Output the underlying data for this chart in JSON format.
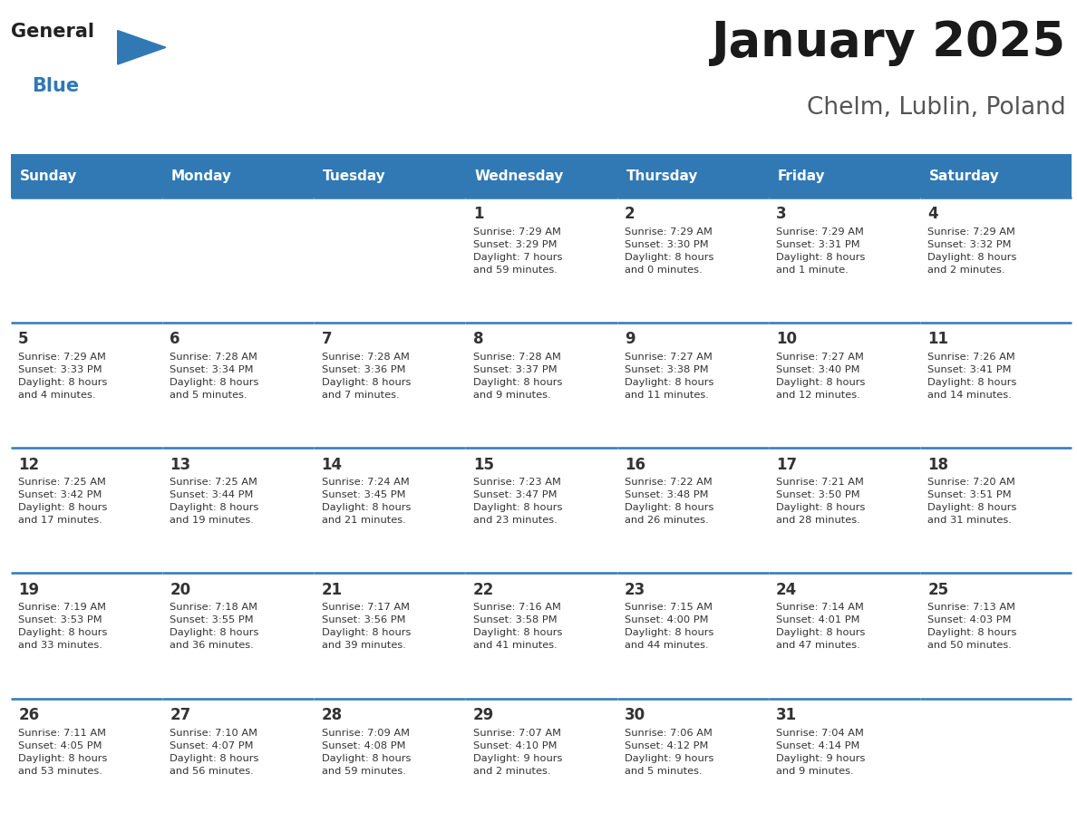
{
  "title": "January 2025",
  "subtitle": "Chelm, Lublin, Poland",
  "header_bg": "#3079b5",
  "header_text_color": "#ffffff",
  "cell_bg_light": "#f0f4f8",
  "cell_bg_white": "#ffffff",
  "border_color": "#3079b5",
  "text_color": "#333333",
  "day_names": [
    "Sunday",
    "Monday",
    "Tuesday",
    "Wednesday",
    "Thursday",
    "Friday",
    "Saturday"
  ],
  "weeks": [
    [
      {
        "day": "",
        "info": ""
      },
      {
        "day": "",
        "info": ""
      },
      {
        "day": "",
        "info": ""
      },
      {
        "day": "1",
        "info": "Sunrise: 7:29 AM\nSunset: 3:29 PM\nDaylight: 7 hours\nand 59 minutes."
      },
      {
        "day": "2",
        "info": "Sunrise: 7:29 AM\nSunset: 3:30 PM\nDaylight: 8 hours\nand 0 minutes."
      },
      {
        "day": "3",
        "info": "Sunrise: 7:29 AM\nSunset: 3:31 PM\nDaylight: 8 hours\nand 1 minute."
      },
      {
        "day": "4",
        "info": "Sunrise: 7:29 AM\nSunset: 3:32 PM\nDaylight: 8 hours\nand 2 minutes."
      }
    ],
    [
      {
        "day": "5",
        "info": "Sunrise: 7:29 AM\nSunset: 3:33 PM\nDaylight: 8 hours\nand 4 minutes."
      },
      {
        "day": "6",
        "info": "Sunrise: 7:28 AM\nSunset: 3:34 PM\nDaylight: 8 hours\nand 5 minutes."
      },
      {
        "day": "7",
        "info": "Sunrise: 7:28 AM\nSunset: 3:36 PM\nDaylight: 8 hours\nand 7 minutes."
      },
      {
        "day": "8",
        "info": "Sunrise: 7:28 AM\nSunset: 3:37 PM\nDaylight: 8 hours\nand 9 minutes."
      },
      {
        "day": "9",
        "info": "Sunrise: 7:27 AM\nSunset: 3:38 PM\nDaylight: 8 hours\nand 11 minutes."
      },
      {
        "day": "10",
        "info": "Sunrise: 7:27 AM\nSunset: 3:40 PM\nDaylight: 8 hours\nand 12 minutes."
      },
      {
        "day": "11",
        "info": "Sunrise: 7:26 AM\nSunset: 3:41 PM\nDaylight: 8 hours\nand 14 minutes."
      }
    ],
    [
      {
        "day": "12",
        "info": "Sunrise: 7:25 AM\nSunset: 3:42 PM\nDaylight: 8 hours\nand 17 minutes."
      },
      {
        "day": "13",
        "info": "Sunrise: 7:25 AM\nSunset: 3:44 PM\nDaylight: 8 hours\nand 19 minutes."
      },
      {
        "day": "14",
        "info": "Sunrise: 7:24 AM\nSunset: 3:45 PM\nDaylight: 8 hours\nand 21 minutes."
      },
      {
        "day": "15",
        "info": "Sunrise: 7:23 AM\nSunset: 3:47 PM\nDaylight: 8 hours\nand 23 minutes."
      },
      {
        "day": "16",
        "info": "Sunrise: 7:22 AM\nSunset: 3:48 PM\nDaylight: 8 hours\nand 26 minutes."
      },
      {
        "day": "17",
        "info": "Sunrise: 7:21 AM\nSunset: 3:50 PM\nDaylight: 8 hours\nand 28 minutes."
      },
      {
        "day": "18",
        "info": "Sunrise: 7:20 AM\nSunset: 3:51 PM\nDaylight: 8 hours\nand 31 minutes."
      }
    ],
    [
      {
        "day": "19",
        "info": "Sunrise: 7:19 AM\nSunset: 3:53 PM\nDaylight: 8 hours\nand 33 minutes."
      },
      {
        "day": "20",
        "info": "Sunrise: 7:18 AM\nSunset: 3:55 PM\nDaylight: 8 hours\nand 36 minutes."
      },
      {
        "day": "21",
        "info": "Sunrise: 7:17 AM\nSunset: 3:56 PM\nDaylight: 8 hours\nand 39 minutes."
      },
      {
        "day": "22",
        "info": "Sunrise: 7:16 AM\nSunset: 3:58 PM\nDaylight: 8 hours\nand 41 minutes."
      },
      {
        "day": "23",
        "info": "Sunrise: 7:15 AM\nSunset: 4:00 PM\nDaylight: 8 hours\nand 44 minutes."
      },
      {
        "day": "24",
        "info": "Sunrise: 7:14 AM\nSunset: 4:01 PM\nDaylight: 8 hours\nand 47 minutes."
      },
      {
        "day": "25",
        "info": "Sunrise: 7:13 AM\nSunset: 4:03 PM\nDaylight: 8 hours\nand 50 minutes."
      }
    ],
    [
      {
        "day": "26",
        "info": "Sunrise: 7:11 AM\nSunset: 4:05 PM\nDaylight: 8 hours\nand 53 minutes."
      },
      {
        "day": "27",
        "info": "Sunrise: 7:10 AM\nSunset: 4:07 PM\nDaylight: 8 hours\nand 56 minutes."
      },
      {
        "day": "28",
        "info": "Sunrise: 7:09 AM\nSunset: 4:08 PM\nDaylight: 8 hours\nand 59 minutes."
      },
      {
        "day": "29",
        "info": "Sunrise: 7:07 AM\nSunset: 4:10 PM\nDaylight: 9 hours\nand 2 minutes."
      },
      {
        "day": "30",
        "info": "Sunrise: 7:06 AM\nSunset: 4:12 PM\nDaylight: 9 hours\nand 5 minutes."
      },
      {
        "day": "31",
        "info": "Sunrise: 7:04 AM\nSunset: 4:14 PM\nDaylight: 9 hours\nand 9 minutes."
      },
      {
        "day": "",
        "info": ""
      }
    ]
  ],
  "logo_general_color": "#222222",
  "logo_blue_color": "#3079b5",
  "logo_triangle_color": "#3079b5"
}
